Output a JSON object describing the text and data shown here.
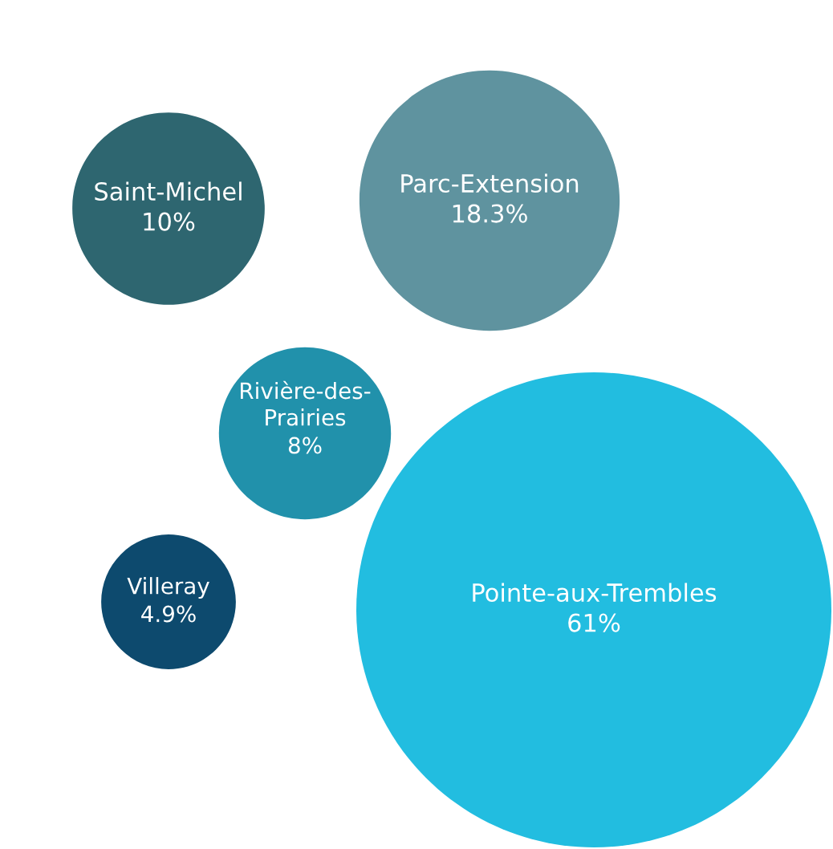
{
  "chart_data": {
    "type": "other",
    "categories": [
      "Saint-Michel",
      "Parc-Extension",
      "Rivière-des-\nPrairies",
      "Villeray",
      "Pointe-aux-Trembles"
    ],
    "values": [
      10,
      18.3,
      8,
      4.9,
      61
    ],
    "value_labels": [
      "10%",
      "18.3%",
      "8%",
      "4.9%",
      "61%"
    ],
    "colors": [
      "#2e6670",
      "#5f939f",
      "#2191ab",
      "#0d4a6e",
      "#22bde0"
    ]
  }
}
